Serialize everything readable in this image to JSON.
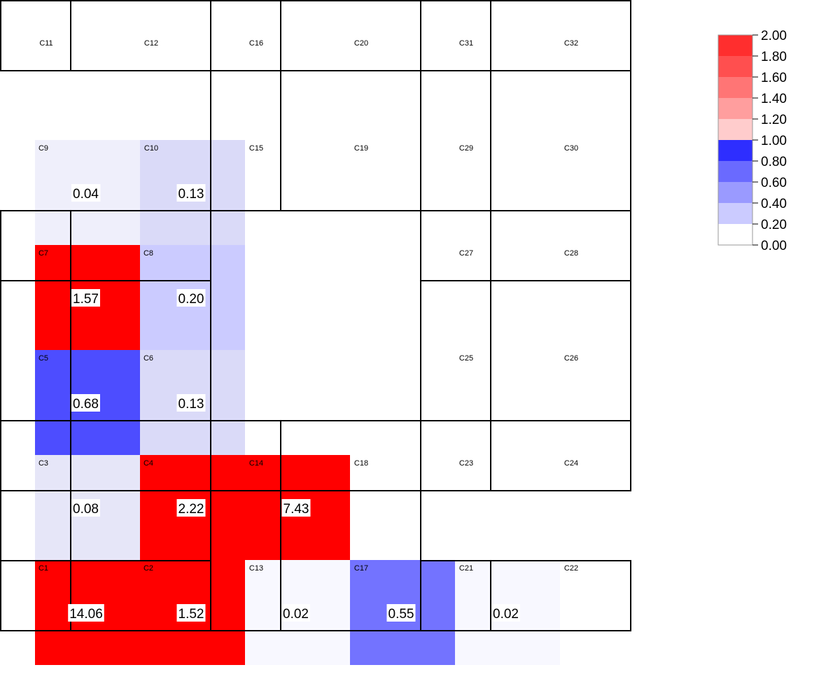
{
  "chart_data": {
    "type": "heatmap",
    "title": "",
    "colorbar": {
      "ticks": [
        "2.00",
        "1.80",
        "1.60",
        "1.40",
        "1.20",
        "1.00",
        "0.80",
        "0.60",
        "0.40",
        "0.20",
        "0.00"
      ],
      "colors_top_to_bottom": [
        "#ff2e2e",
        "#ff4f4f",
        "#ff7575",
        "#ff9e9e",
        "#ffcccc",
        "#2e2eff",
        "#6a6aff",
        "#9a9aff",
        "#cbcbff",
        "#ffffff"
      ],
      "range": [
        0,
        2
      ]
    },
    "cells": [
      {
        "name": "C1",
        "value": 14.06,
        "value_text": "14.06"
      },
      {
        "name": "C2",
        "value": 1.52,
        "value_text": "1.52"
      },
      {
        "name": "C3",
        "value": 0.08,
        "value_text": "0.08"
      },
      {
        "name": "C4",
        "value": 2.22,
        "value_text": "2.22"
      },
      {
        "name": "C5",
        "value": 0.68,
        "value_text": "0.68"
      },
      {
        "name": "C6",
        "value": 0.13,
        "value_text": "0.13"
      },
      {
        "name": "C7",
        "value": 1.57,
        "value_text": "1.57"
      },
      {
        "name": "C8",
        "value": 0.2,
        "value_text": "0.20"
      },
      {
        "name": "C9",
        "value": 0.04,
        "value_text": "0.04"
      },
      {
        "name": "C10",
        "value": 0.13,
        "value_text": "0.13"
      },
      {
        "name": "C11",
        "value": null,
        "value_text": ""
      },
      {
        "name": "C12",
        "value": null,
        "value_text": ""
      },
      {
        "name": "C13",
        "value": 0.02,
        "value_text": "0.02"
      },
      {
        "name": "C14",
        "value": 7.43,
        "value_text": "7.43"
      },
      {
        "name": "C15",
        "value": null,
        "value_text": ""
      },
      {
        "name": "C16",
        "value": null,
        "value_text": ""
      },
      {
        "name": "C17",
        "value": 0.55,
        "value_text": "0.55"
      },
      {
        "name": "C18",
        "value": null,
        "value_text": ""
      },
      {
        "name": "C19",
        "value": null,
        "value_text": ""
      },
      {
        "name": "C20",
        "value": null,
        "value_text": ""
      },
      {
        "name": "C21",
        "value": 0.02,
        "value_text": "0.02"
      },
      {
        "name": "C22",
        "value": null,
        "value_text": ""
      },
      {
        "name": "C23",
        "value": null,
        "value_text": ""
      },
      {
        "name": "C24",
        "value": null,
        "value_text": ""
      },
      {
        "name": "C25",
        "value": null,
        "value_text": ""
      },
      {
        "name": "C26",
        "value": null,
        "value_text": ""
      },
      {
        "name": "C27",
        "value": null,
        "value_text": ""
      },
      {
        "name": "C28",
        "value": null,
        "value_text": ""
      },
      {
        "name": "C29",
        "value": null,
        "value_text": ""
      },
      {
        "name": "C30",
        "value": null,
        "value_text": ""
      },
      {
        "name": "C31",
        "value": null,
        "value_text": ""
      },
      {
        "name": "C32",
        "value": null,
        "value_text": ""
      }
    ]
  }
}
